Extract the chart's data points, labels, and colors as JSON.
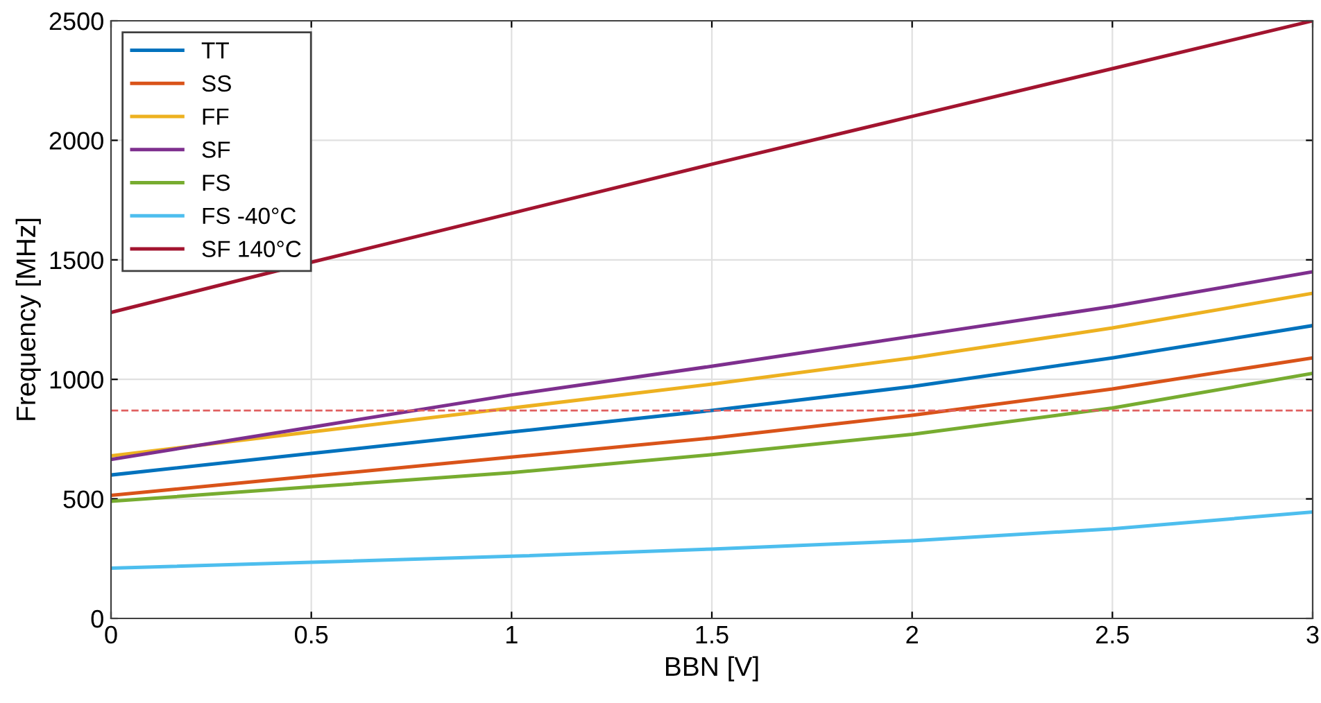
{
  "chart_data": {
    "type": "line",
    "xlabel": "BBN [V]",
    "ylabel": "Frequency [MHz]",
    "x": [
      0,
      0.5,
      1,
      1.5,
      2,
      2.5,
      3
    ],
    "series": [
      {
        "name": "TT",
        "color": "#0072bd",
        "values": [
          600,
          690,
          780,
          870,
          970,
          1090,
          1225
        ]
      },
      {
        "name": "SS",
        "color": "#d95319",
        "values": [
          515,
          595,
          675,
          755,
          850,
          960,
          1090
        ]
      },
      {
        "name": "FF",
        "color": "#edb120",
        "values": [
          680,
          780,
          880,
          980,
          1090,
          1215,
          1360
        ]
      },
      {
        "name": "SF",
        "color": "#7e2f8e",
        "values": [
          665,
          800,
          935,
          1055,
          1180,
          1305,
          1450
        ]
      },
      {
        "name": "FS",
        "color": "#77ac30",
        "values": [
          490,
          550,
          610,
          685,
          770,
          880,
          1025
        ]
      },
      {
        "name": "FS -40°C",
        "color": "#4dbeee",
        "values": [
          210,
          235,
          260,
          290,
          325,
          375,
          445
        ]
      },
      {
        "name": "SF 140°C",
        "color": "#a2142f",
        "values": [
          1280,
          1490,
          1695,
          1900,
          2100,
          2300,
          2500
        ]
      }
    ],
    "ref_lines": [
      {
        "axis": "y",
        "value": 870,
        "color": "#e06060",
        "line_style": "dashed"
      }
    ],
    "xlim": [
      0,
      3
    ],
    "xticks": [
      0,
      0.5,
      1,
      1.5,
      2,
      2.5,
      3
    ],
    "ylim": [
      0,
      2500
    ],
    "yticks": [
      0,
      500,
      1000,
      1500,
      2000,
      2500
    ],
    "grid": true,
    "legend": "top left",
    "marker": "none",
    "line_style": "solid"
  }
}
